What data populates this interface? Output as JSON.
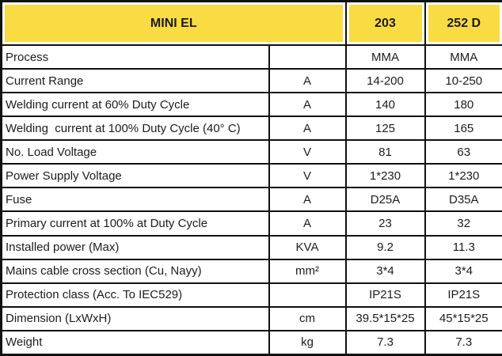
{
  "table": {
    "header": {
      "title": "MINI EL",
      "model_1": "203",
      "model_2": "252 D"
    },
    "rows": [
      {
        "label": "Process",
        "unit": "",
        "values": [
          "MMA",
          "MMA"
        ]
      },
      {
        "label": "Current Range",
        "unit": "A",
        "values": [
          "14-200",
          "10-250"
        ]
      },
      {
        "label": "Welding current at 60% Duty Cycle",
        "unit": "A",
        "values": [
          "140",
          "180"
        ]
      },
      {
        "label": "Welding  current at 100% Duty Cycle (40° C)",
        "unit": "A",
        "values": [
          "125",
          "165"
        ]
      },
      {
        "label": "No. Load Voltage",
        "unit": "V",
        "values": [
          "81",
          "63"
        ]
      },
      {
        "label": "Power Supply Voltage",
        "unit": "V",
        "values": [
          "1*230",
          "1*230"
        ]
      },
      {
        "label": "Fuse",
        "unit": "A",
        "values": [
          "D25A",
          "D35A"
        ]
      },
      {
        "label": "Primary current at 100% at Duty Cycle",
        "unit": "A",
        "values": [
          "23",
          "32"
        ]
      },
      {
        "label": "Installed power (Max)",
        "unit": "KVA",
        "values": [
          "9.2",
          "11.3"
        ]
      },
      {
        "label": "Mains cable cross section (Cu, Nayy)",
        "unit": "mm²",
        "values": [
          "3*4",
          "3*4"
        ]
      },
      {
        "label": "Protection class (Acc. To IEC529)",
        "unit": "",
        "values": [
          "IP21S",
          "IP21S"
        ]
      },
      {
        "label": "Dimension (LxWxH)",
        "unit": "cm",
        "values": [
          "39.5*15*25",
          "45*15*25"
        ]
      },
      {
        "label": "Weight",
        "unit": "kg",
        "values": [
          "7.3",
          "7.3"
        ]
      }
    ],
    "colors": {
      "header_bg": "#F9DC43",
      "grid_border": "#111111",
      "text": "#1C1C1C",
      "cell_bg": "#FFFFFF"
    }
  }
}
